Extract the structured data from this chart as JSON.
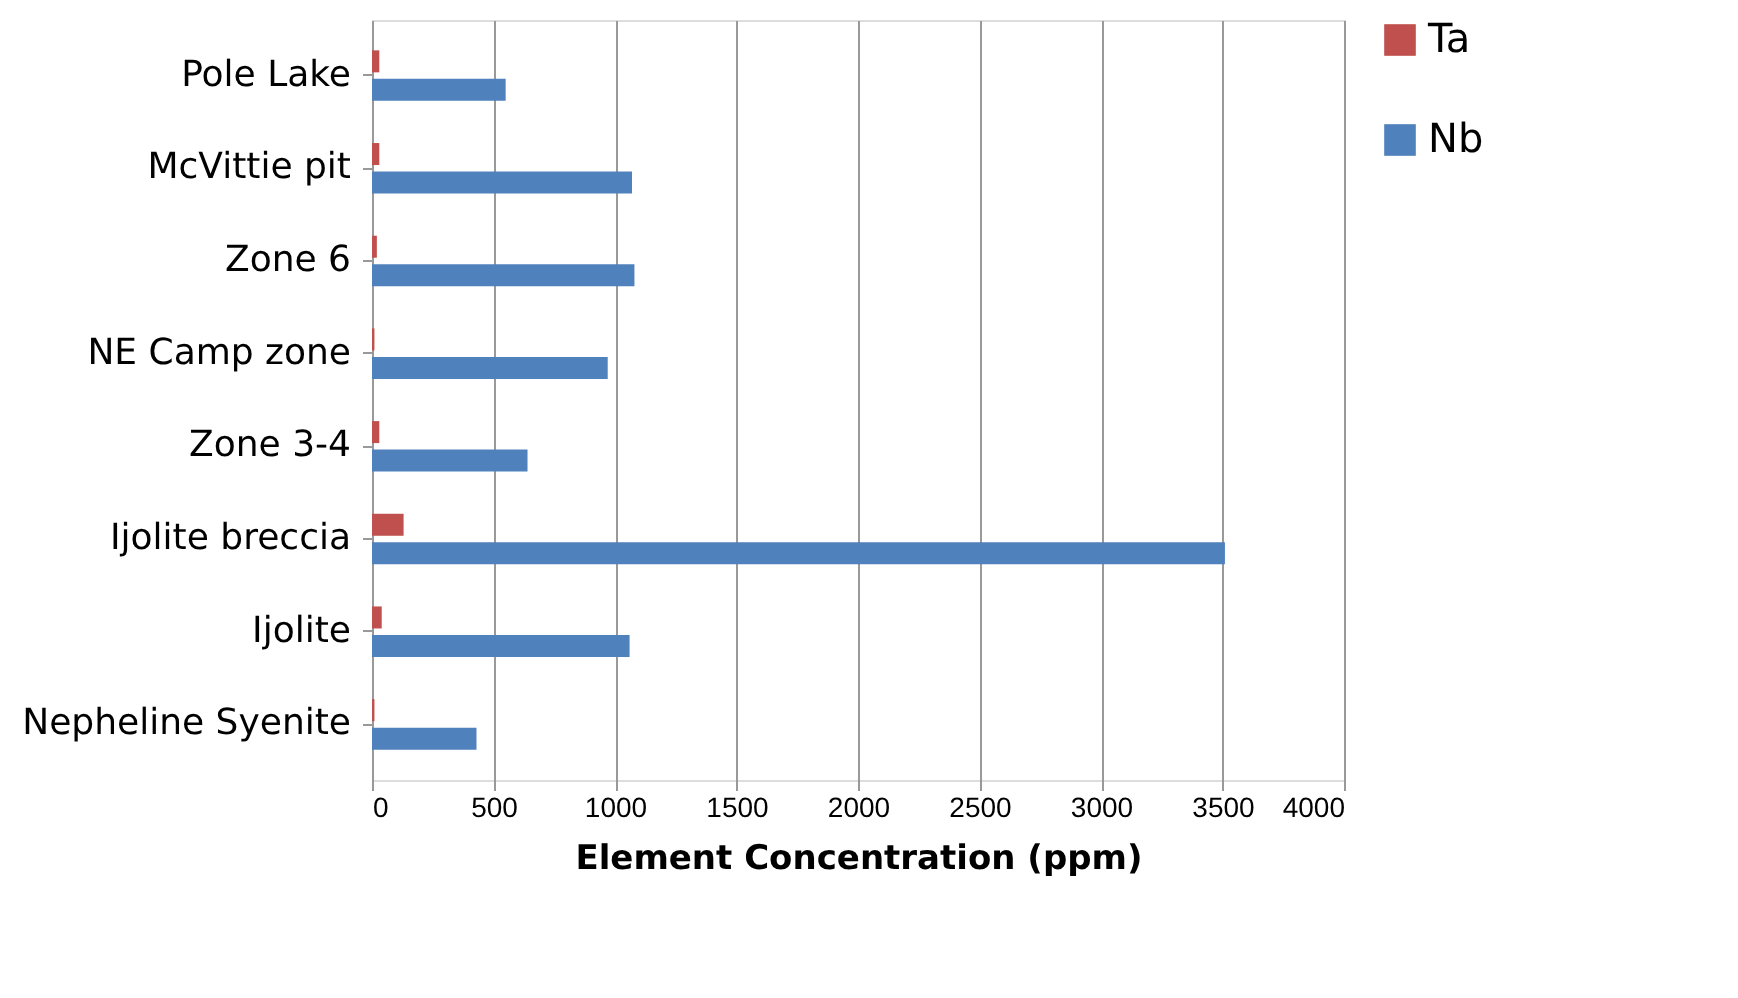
{
  "chart_data": {
    "type": "bar",
    "orientation": "horizontal",
    "xlabel": "Element Concentration (ppm)",
    "categories": [
      "Pole Lake",
      "McVittie pit",
      "Zone 6",
      "NE Camp zone",
      "Zone 3-4",
      "Ijolite breccia",
      "Ijolite",
      "Nepheline Syenite"
    ],
    "series": [
      {
        "name": "Ta",
        "color": "#c0504d",
        "values": [
          30,
          30,
          20,
          10,
          30,
          130,
          40,
          10
        ]
      },
      {
        "name": "Nb",
        "color": "#4f81bd",
        "values": [
          550,
          1070,
          1080,
          970,
          640,
          3510,
          1060,
          430
        ]
      }
    ],
    "xlim": [
      0,
      4000
    ],
    "xticks": [
      0,
      500,
      1000,
      1500,
      2000,
      2500,
      3000,
      3500,
      4000
    ],
    "grid": "x",
    "legend": "right"
  }
}
